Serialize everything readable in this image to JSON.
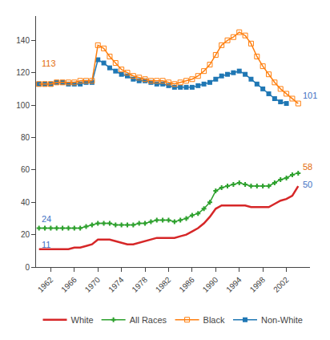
{
  "chart_data": {
    "type": "line",
    "series": [
      {
        "name": "White",
        "marker": "none",
        "line_style": "solid",
        "x": [
          1960,
          1961,
          1962,
          1963,
          1964,
          1965,
          1966,
          1967,
          1968,
          1969,
          1970,
          1971,
          1972,
          1973,
          1974,
          1975,
          1976,
          1977,
          1978,
          1979,
          1980,
          1981,
          1982,
          1983,
          1984,
          1985,
          1986,
          1987,
          1988,
          1989,
          1990,
          1991,
          1992,
          1993,
          1994,
          1995,
          1996,
          1997,
          1998,
          1999,
          2000,
          2001,
          2002,
          2003,
          2004
        ],
        "values": [
          11,
          11,
          11,
          11,
          11,
          11,
          12,
          12,
          13,
          14,
          17,
          17,
          17,
          16,
          15,
          14,
          14,
          15,
          16,
          17,
          18,
          18,
          18,
          18,
          19,
          20,
          22,
          24,
          27,
          31,
          36,
          38,
          38,
          38,
          38,
          38,
          37,
          37,
          37,
          37,
          39,
          41,
          42,
          44,
          50
        ]
      },
      {
        "name": "All Races",
        "marker": "cross",
        "line_style": "solid",
        "x": [
          1960,
          1961,
          1962,
          1963,
          1964,
          1965,
          1966,
          1967,
          1968,
          1969,
          1970,
          1971,
          1972,
          1973,
          1974,
          1975,
          1976,
          1977,
          1978,
          1979,
          1980,
          1981,
          1982,
          1983,
          1984,
          1985,
          1986,
          1987,
          1988,
          1989,
          1990,
          1991,
          1992,
          1993,
          1994,
          1995,
          1996,
          1997,
          1998,
          1999,
          2000,
          2001,
          2002,
          2003,
          2004
        ],
        "values": [
          24,
          24,
          24,
          24,
          24,
          24,
          24,
          24,
          25,
          26,
          27,
          27,
          27,
          26,
          26,
          26,
          26,
          27,
          27,
          28,
          29,
          29,
          29,
          28,
          29,
          30,
          32,
          33,
          36,
          40,
          47,
          49,
          50,
          51,
          52,
          51,
          50,
          50,
          50,
          50,
          52,
          54,
          55,
          57,
          58
        ]
      },
      {
        "name": "Black",
        "marker": "square-open",
        "line_style": "solid",
        "x": [
          1960,
          1961,
          1962,
          1963,
          1964,
          1965,
          1966,
          1967,
          1968,
          1969,
          1970,
          1971,
          1972,
          1973,
          1974,
          1975,
          1976,
          1977,
          1978,
          1979,
          1980,
          1981,
          1982,
          1983,
          1984,
          1985,
          1986,
          1987,
          1988,
          1989,
          1990,
          1991,
          1992,
          1993,
          1994,
          1995,
          1996,
          1997,
          1998,
          1999,
          2000,
          2001,
          2002,
          2003,
          2004
        ],
        "values": [
          113,
          113,
          113,
          114,
          114,
          114,
          114,
          115,
          115,
          115,
          137,
          135,
          130,
          126,
          122,
          120,
          118,
          117,
          116,
          115,
          115,
          115,
          114,
          113,
          114,
          115,
          116,
          118,
          121,
          125,
          131,
          137,
          140,
          142,
          145,
          143,
          138,
          130,
          124,
          119,
          114,
          110,
          107,
          104,
          101
        ]
      },
      {
        "name": "Non-White",
        "marker": "square",
        "line_style": "solid",
        "x": [
          1960,
          1961,
          1962,
          1963,
          1964,
          1965,
          1966,
          1967,
          1968,
          1969,
          1970,
          1971,
          1972,
          1973,
          1974,
          1975,
          1976,
          1977,
          1978,
          1979,
          1980,
          1981,
          1982,
          1983,
          1984,
          1985,
          1986,
          1987,
          1988,
          1989,
          1990,
          1991,
          1992,
          1993,
          1994,
          1995,
          1996,
          1997,
          1998,
          1999,
          2000,
          2001,
          2002
        ],
        "values": [
          113,
          113,
          113,
          114,
          114,
          113,
          113,
          113,
          114,
          114,
          128,
          126,
          123,
          121,
          119,
          118,
          116,
          115,
          115,
          114,
          113,
          113,
          112,
          111,
          111,
          111,
          111,
          112,
          113,
          114,
          116,
          118,
          119,
          120,
          121,
          119,
          116,
          113,
          110,
          107,
          104,
          102,
          101
        ]
      }
    ],
    "annotations": [
      {
        "text": "113",
        "x": 1960.2,
        "y": 122,
        "color": "#e36c0a"
      },
      {
        "text": "24",
        "x": 1960.2,
        "y": 26,
        "color": "#4472c4"
      },
      {
        "text": "11",
        "x": 1960.2,
        "y": 10,
        "color": "#4472c4"
      },
      {
        "text": "101",
        "x": 2004.5,
        "y": 102,
        "color": "#4472c4"
      },
      {
        "text": "58",
        "x": 2004.5,
        "y": 58,
        "color": "#e36c0a"
      },
      {
        "text": "50",
        "x": 2004.5,
        "y": 47,
        "color": "#4472c4"
      }
    ],
    "xlim": [
      1959.5,
      2006
    ],
    "xticks": [
      1962,
      1966,
      1970,
      1974,
      1978,
      1982,
      1986,
      1990,
      1994,
      1998,
      2002
    ],
    "ylim": [
      0,
      155
    ],
    "yticks": [
      0,
      20,
      40,
      60,
      80,
      100,
      120,
      140
    ],
    "grid": false,
    "legend": "bottom"
  }
}
